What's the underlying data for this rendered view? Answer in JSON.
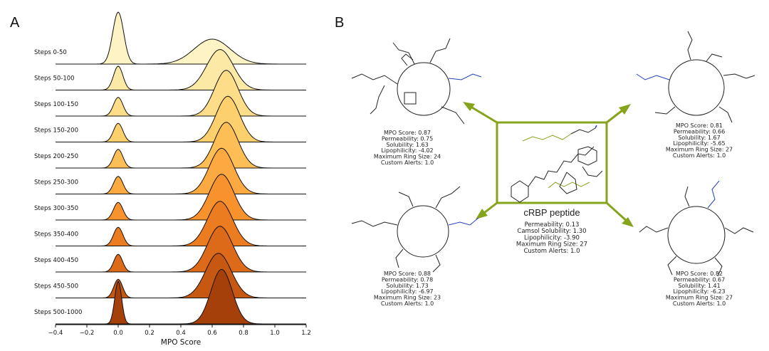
{
  "panel_a_label": "A",
  "panel_b_label": "B",
  "chart_data": {
    "type": "ridgeline",
    "xlabel": "MPO Score",
    "xlim": [
      -0.4,
      1.2
    ],
    "xticks": [
      "−0.4",
      "−0.2",
      "0.0",
      "0.2",
      "0.4",
      "0.6",
      "0.8",
      "1.0",
      "1.2"
    ],
    "grid": false,
    "series": [
      {
        "name": "Steps 0-50",
        "color": "#fdf3c4",
        "peaks": [
          {
            "mu": 0.0,
            "sigma": 0.035,
            "height": 1.0
          },
          {
            "mu": 0.6,
            "sigma": 0.115,
            "height": 0.48
          }
        ]
      },
      {
        "name": "Steps 50-100",
        "color": "#fde9a6",
        "peaks": [
          {
            "mu": 0.0,
            "sigma": 0.03,
            "height": 0.46
          },
          {
            "mu": 0.65,
            "sigma": 0.085,
            "height": 0.78
          }
        ]
      },
      {
        "name": "Steps 100-150",
        "color": "#fedd88",
        "peaks": [
          {
            "mu": 0.0,
            "sigma": 0.03,
            "height": 0.36
          },
          {
            "mu": 0.69,
            "sigma": 0.075,
            "height": 0.88
          }
        ]
      },
      {
        "name": "Steps 150-200",
        "color": "#fecf6d",
        "peaks": [
          {
            "mu": 0.0,
            "sigma": 0.03,
            "height": 0.36
          },
          {
            "mu": 0.7,
            "sigma": 0.075,
            "height": 0.88
          }
        ]
      },
      {
        "name": "Steps 200-250",
        "color": "#fdbe55",
        "peaks": [
          {
            "mu": 0.0,
            "sigma": 0.03,
            "height": 0.36
          },
          {
            "mu": 0.69,
            "sigma": 0.075,
            "height": 0.88
          }
        ]
      },
      {
        "name": "Steps 250-300",
        "color": "#fba940",
        "peaks": [
          {
            "mu": 0.0,
            "sigma": 0.03,
            "height": 0.34
          },
          {
            "mu": 0.66,
            "sigma": 0.078,
            "height": 0.88
          }
        ]
      },
      {
        "name": "Steps 300-350",
        "color": "#f7922d",
        "peaks": [
          {
            "mu": 0.0,
            "sigma": 0.03,
            "height": 0.34
          },
          {
            "mu": 0.66,
            "sigma": 0.078,
            "height": 0.88
          }
        ]
      },
      {
        "name": "Steps 350-400",
        "color": "#ec7c20",
        "peaks": [
          {
            "mu": 0.0,
            "sigma": 0.03,
            "height": 0.36
          },
          {
            "mu": 0.65,
            "sigma": 0.08,
            "height": 0.86
          }
        ]
      },
      {
        "name": "Steps 400-450",
        "color": "#dc6a18",
        "peaks": [
          {
            "mu": 0.0,
            "sigma": 0.028,
            "height": 0.34
          },
          {
            "mu": 0.65,
            "sigma": 0.08,
            "height": 0.88
          }
        ]
      },
      {
        "name": "Steps 450-500",
        "color": "#c75812",
        "peaks": [
          {
            "mu": 0.0,
            "sigma": 0.028,
            "height": 0.36
          },
          {
            "mu": 0.64,
            "sigma": 0.082,
            "height": 0.86
          }
        ]
      },
      {
        "name": "Steps 500-1000",
        "color": "#a5400a",
        "peaks": [
          {
            "mu": 0.0,
            "sigma": 0.022,
            "height": 0.82
          },
          {
            "mu": 0.66,
            "sigma": 0.068,
            "height": 1.05
          }
        ]
      }
    ]
  },
  "diagram": {
    "accent_color": "#86a31c",
    "center": {
      "name": "cRBP peptide",
      "properties": [
        "Permeability: 0.13",
        "Camsol Solubility: 1.30",
        "Lipophilicity: -3.90",
        "Maximum Ring Size: 27",
        "Custom Alerts: 1.0"
      ]
    },
    "molecules": [
      {
        "position": "top-left",
        "properties": [
          "MPO Score: 0.87",
          "Permeability: 0.75",
          "Solubility: 1.63",
          "Lipophilicity: -4.02",
          "Maximum Ring Size: 24",
          "Custom Alerts: 1.0"
        ]
      },
      {
        "position": "top-right",
        "properties": [
          "MPO Score: 0.81",
          "Permeability: 0.66",
          "Solubility: 1.67",
          "Lipophilicity: -5.65",
          "Maximum Ring Size: 27",
          "Custom Alerts: 1.0"
        ]
      },
      {
        "position": "bottom-left",
        "properties": [
          "MPO Score: 0.88",
          "Permeability: 0.78",
          "Solubility: 1.73",
          "Lipophilicity: -6.97",
          "Maximum Ring Size: 23",
          "Custom Alerts: 1.0"
        ]
      },
      {
        "position": "bottom-right",
        "properties": [
          "MPO Score: 0.82",
          "Permeability: 0.67",
          "Solubility: 1.41",
          "Lipophilicity: -6.23",
          "Maximum Ring Size: 27",
          "Custom Alerts: 1.0"
        ]
      }
    ]
  }
}
